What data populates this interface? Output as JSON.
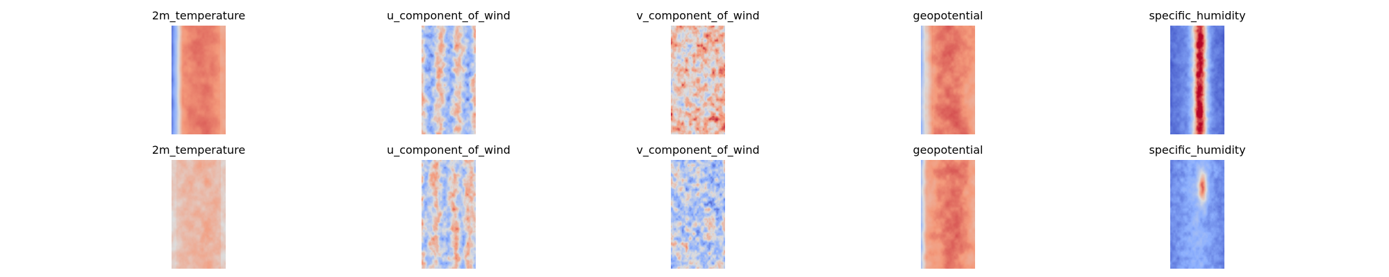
{
  "chart_data": {
    "type": "heatmap",
    "colormap": "coolwarm",
    "axes_visible": false,
    "grid": false,
    "rows": [
      {
        "panels": [
          {
            "title": "2m_temperature",
            "pattern": "t2m"
          },
          {
            "title": "u_component_of_wind",
            "pattern": "uwind"
          },
          {
            "title": "v_component_of_wind",
            "pattern": "vwind"
          },
          {
            "title": "geopotential",
            "pattern": "geo"
          },
          {
            "title": "specific_humidity",
            "pattern": "hum"
          }
        ]
      },
      {
        "panels": [
          {
            "title": "2m_temperature",
            "pattern": "t2m_b"
          },
          {
            "title": "u_component_of_wind",
            "pattern": "uwind_b"
          },
          {
            "title": "v_component_of_wind",
            "pattern": "vwind_b"
          },
          {
            "title": "geopotential",
            "pattern": "geo_b"
          },
          {
            "title": "specific_humidity",
            "pattern": "hum_b"
          }
        ]
      }
    ]
  }
}
